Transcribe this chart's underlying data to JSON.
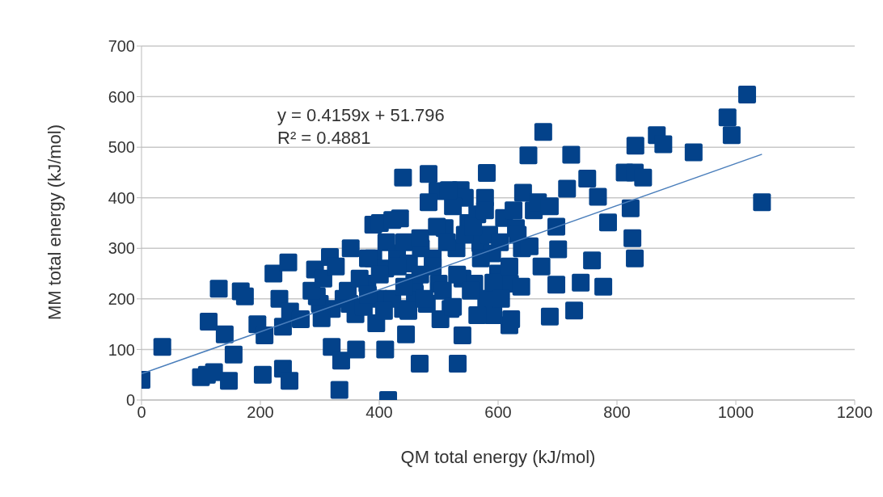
{
  "chart_data": {
    "type": "scatter",
    "xlabel": "QM total energy (kJ/mol)",
    "ylabel": "MM total energy (kJ/mol)",
    "annotations": [
      "y = 0.4159x + 51.796",
      "R² = 0.4881"
    ],
    "xlim": [
      0,
      1200
    ],
    "xticks": [
      0,
      200,
      400,
      600,
      800,
      1000,
      1200
    ],
    "ylim": [
      0,
      700
    ],
    "yticks": [
      0,
      100,
      200,
      300,
      400,
      500,
      600,
      700
    ],
    "grid": "y",
    "series": [
      {
        "color": "#03428a",
        "marker": "square",
        "x": [
          300,
          320,
          340,
          360,
          380,
          400,
          440,
          460,
          480,
          500,
          520,
          540,
          560,
          580,
          600,
          620,
          640,
          390,
          410,
          430,
          450,
          470,
          490,
          510,
          530,
          550,
          570,
          590,
          610,
          630,
          350,
          0,
          35,
          100,
          110,
          122,
          113,
          130,
          140,
          155,
          147,
          167,
          174,
          195,
          204,
          207,
          222,
          232,
          238,
          247,
          249,
          238,
          250,
          268,
          292,
          295,
          303,
          317,
          320,
          333,
          336,
          352,
          361,
          390,
          401,
          422,
          415,
          410,
          440,
          445,
          483,
          468,
          498,
          537,
          540,
          544,
          532,
          581,
          578,
          592,
          619,
          622,
          642,
          651,
          676,
          687,
          698,
          701,
          698,
          716,
          723,
          728,
          739,
          750,
          758,
          768,
          777,
          785,
          813,
          823,
          830,
          826,
          830,
          831,
          844,
          867,
          878,
          929,
          986,
          993,
          1019,
          1044,
          286,
          306,
          327,
          347,
          367,
          374,
          381,
          395,
          401,
          412,
          422,
          431,
          442,
          449,
          459,
          469,
          476,
          490,
          497,
          507,
          514,
          524,
          531,
          544,
          554,
          565,
          571,
          585,
          592,
          603,
          619,
          633,
          639,
          653,
          660,
          673,
          667,
          469,
          442,
          381,
          408,
          503,
          565,
          524,
          605,
          435,
          483,
          517,
          558,
          578,
          626,
          687
        ],
        "values": [
          190,
          180,
          200,
          170,
          230,
          200,
          180,
          210,
          190,
          230,
          180,
          240,
          230,
          200,
          250,
          230,
          300,
          280,
          260,
          290,
          270,
          300,
          280,
          340,
          300,
          350,
          310,
          290,
          360,
          340,
          190,
          40,
          105,
          45,
          50,
          55,
          155,
          220,
          130,
          90,
          38,
          215,
          205,
          150,
          50,
          128,
          250,
          200,
          62,
          272,
          38,
          145,
          175,
          160,
          258,
          205,
          162,
          283,
          105,
          20,
          78,
          300,
          100,
          347,
          350,
          356,
          0,
          100,
          440,
          130,
          447,
          72,
          413,
          415,
          128,
          400,
          72,
          449,
          400,
          168,
          148,
          160,
          410,
          484,
          530,
          165,
          228,
          298,
          343,
          418,
          485,
          177,
          232,
          438,
          276,
          402,
          224,
          351,
          450,
          379,
          450,
          320,
          280,
          503,
          440,
          524,
          506,
          490,
          559,
          524,
          604,
          391,
          216,
          240,
          264,
          216,
          240,
          184,
          280,
          152,
          248,
          312,
          200,
          264,
          312,
          176,
          232,
          320,
          200,
          264,
          343,
          216,
          312,
          383,
          248,
          327,
          216,
          367,
          280,
          327,
          232,
          312,
          264,
          327,
          224,
          304,
          375,
          264,
          391,
          248,
          224,
          208,
          176,
          160,
          168,
          184,
          200,
          359,
          391,
          415,
          343,
          375,
          375,
          383
        ]
      },
      {
        "type": "line",
        "marker": "none",
        "color": "#4a7ebb",
        "x": [
          0,
          1044
        ],
        "values": [
          51.796,
          485.996
        ]
      }
    ]
  }
}
